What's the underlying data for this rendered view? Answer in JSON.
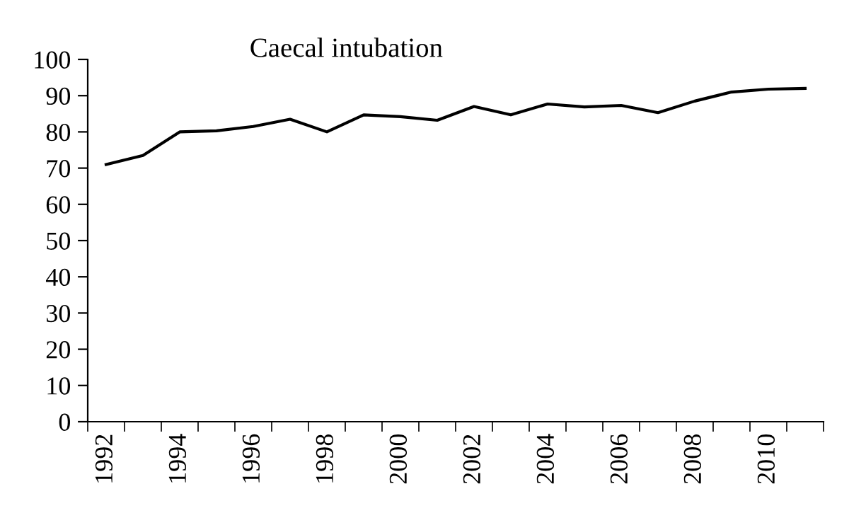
{
  "chart_data": {
    "type": "line",
    "title": "Caecal intubation",
    "categories": [
      "1992",
      null,
      "1994",
      null,
      "1996",
      null,
      "1998",
      null,
      "2000",
      null,
      "2002",
      null,
      "2004",
      null,
      "2006",
      null,
      "2008",
      null,
      "2010",
      null
    ],
    "series": [
      {
        "color": "#000000",
        "values": [
          71,
          73.5,
          80,
          80.3,
          81.5,
          83.5,
          80,
          84.7,
          84.2,
          83.2,
          87,
          84.7,
          87.7,
          86.9,
          87.3,
          85.3,
          88.5,
          91,
          91.8,
          92
        ]
      }
    ],
    "ylim": [
      0,
      100
    ],
    "yticks": [
      0,
      10,
      20,
      30,
      40,
      50,
      60,
      70,
      80,
      90,
      100
    ],
    "grid": false,
    "legend": false,
    "marker": "none",
    "line_style": "solid"
  }
}
